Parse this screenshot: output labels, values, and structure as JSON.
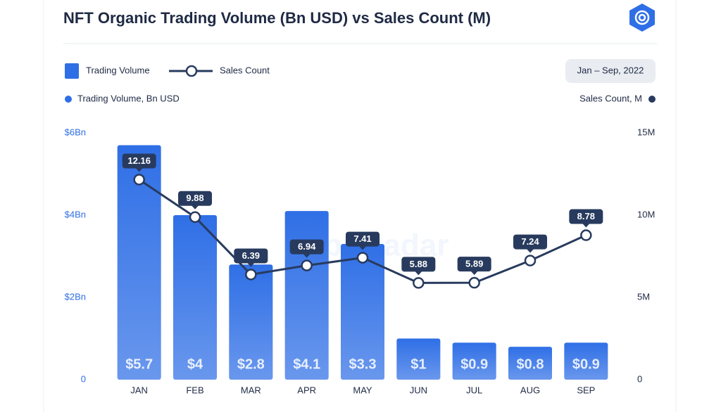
{
  "chart_data": {
    "type": "bar_line",
    "title": "NFT Organic Trading Volume (Bn USD) vs Sales Count (M)",
    "period": "Jan – Sep, 2022",
    "watermark": "DappRadar",
    "left_axis_label": "Trading Volume, Bn USD",
    "right_axis_label": "Sales Count, M",
    "categories": [
      "JAN",
      "FEB",
      "MAR",
      "APR",
      "MAY",
      "JUN",
      "JUL",
      "AUG",
      "SEP"
    ],
    "series": [
      {
        "name": "Trading Volume",
        "type": "bar",
        "color": "#2f6fe6",
        "values": [
          5.7,
          4,
          2.8,
          4.1,
          3.3,
          1,
          0.9,
          0.8,
          0.9
        ],
        "value_labels": [
          "$5.7",
          "$4",
          "$2.8",
          "$4.1",
          "$3.3",
          "$1",
          "$0.9",
          "$0.8",
          "$0.9"
        ]
      },
      {
        "name": "Sales Count",
        "type": "line",
        "axis": "y2",
        "color": "#283b5e",
        "values": [
          12.16,
          9.88,
          6.39,
          6.94,
          7.41,
          5.88,
          5.89,
          7.24,
          8.78
        ]
      }
    ],
    "ylim": [
      0,
      6
    ],
    "yticks": [
      0,
      {
        "value": 2,
        "label": "$2Bn"
      },
      {
        "value": 4,
        "label": "$4Bn"
      },
      {
        "value": 6,
        "label": "$6Bn"
      }
    ],
    "y2lim": [
      0,
      15
    ],
    "y2ticks": [
      0,
      {
        "value": 5,
        "label": "5M"
      },
      {
        "value": 10,
        "label": "10M"
      },
      {
        "value": 15,
        "label": "15M"
      }
    ]
  }
}
